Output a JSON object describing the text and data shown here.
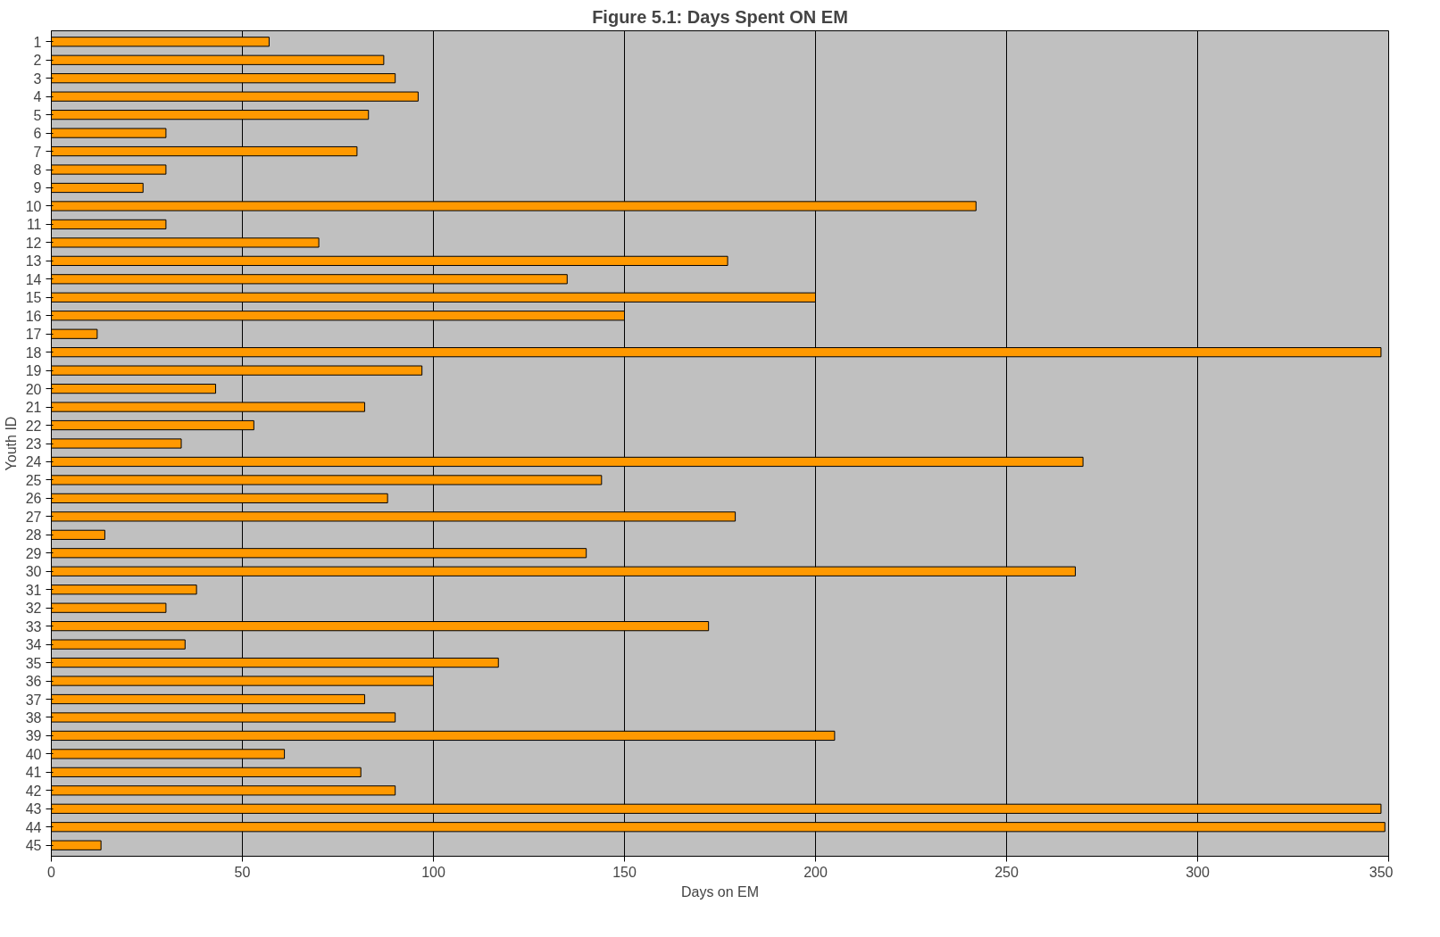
{
  "chart_data": {
    "type": "bar",
    "orientation": "horizontal",
    "title": "Figure 5.1: Days Spent ON EM",
    "xlabel": "Days on EM",
    "ylabel": "Youth ID",
    "categories": [
      "1",
      "2",
      "3",
      "4",
      "5",
      "6",
      "7",
      "8",
      "9",
      "10",
      "11",
      "12",
      "13",
      "14",
      "15",
      "16",
      "17",
      "18",
      "19",
      "20",
      "21",
      "22",
      "23",
      "24",
      "25",
      "26",
      "27",
      "28",
      "29",
      "30",
      "31",
      "32",
      "33",
      "34",
      "35",
      "36",
      "37",
      "38",
      "39",
      "40",
      "41",
      "42",
      "43",
      "44",
      "45"
    ],
    "values": [
      57,
      87,
      90,
      96,
      83,
      30,
      80,
      30,
      24,
      242,
      30,
      70,
      177,
      135,
      200,
      150,
      12,
      348,
      97,
      43,
      82,
      53,
      34,
      270,
      144,
      88,
      179,
      14,
      140,
      268,
      38,
      30,
      172,
      35,
      117,
      100,
      82,
      90,
      205,
      61,
      81,
      90,
      348,
      349,
      13
    ],
    "color": "#ff9900",
    "xlim": [
      0,
      350
    ],
    "xticks": [
      0,
      50,
      100,
      150,
      200,
      250,
      300,
      350
    ],
    "grid": "x"
  }
}
